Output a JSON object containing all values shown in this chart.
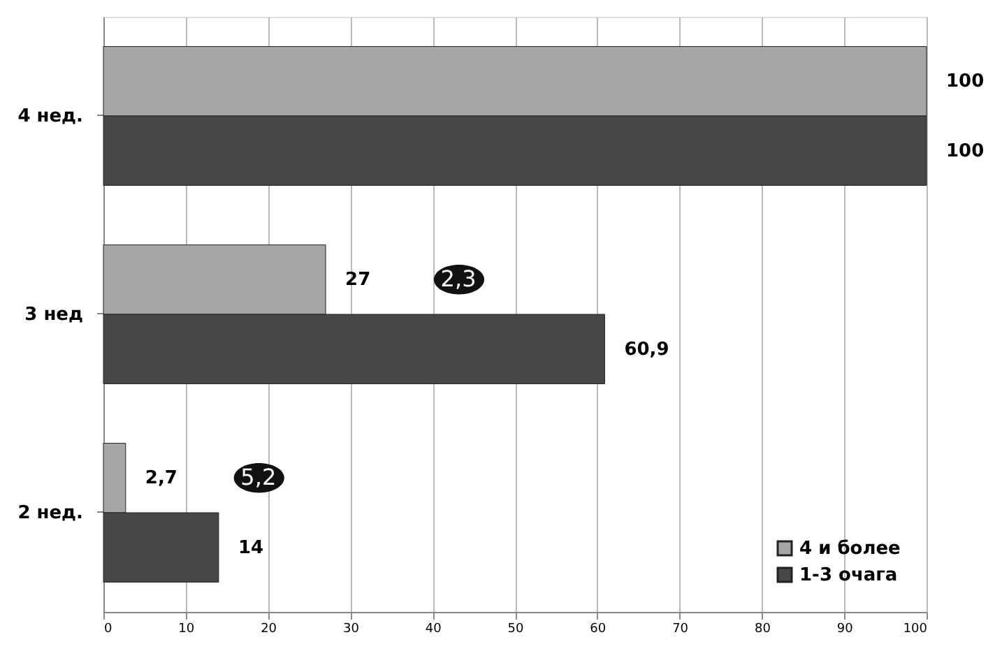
{
  "chart_data": {
    "type": "bar",
    "orientation": "horizontal",
    "categories": [
      "4 нед.",
      "3 нед",
      "2 нед."
    ],
    "series": [
      {
        "name": "4 и более",
        "color": "#a6a6a6",
        "values": [
          100,
          27,
          2.7
        ],
        "value_labels": [
          "100",
          "27",
          "2,7"
        ]
      },
      {
        "name": "1-3 очага",
        "color": "#474747",
        "values": [
          100,
          60.9,
          14
        ],
        "value_labels": [
          "100",
          "60,9",
          "14"
        ]
      }
    ],
    "xlim": [
      0,
      100
    ],
    "xticks": [
      0,
      10,
      20,
      30,
      40,
      50,
      60,
      70,
      80,
      90,
      100
    ],
    "grid": "x",
    "legend": "bottom right",
    "annotations": [
      "2,3",
      "5,2"
    ]
  }
}
